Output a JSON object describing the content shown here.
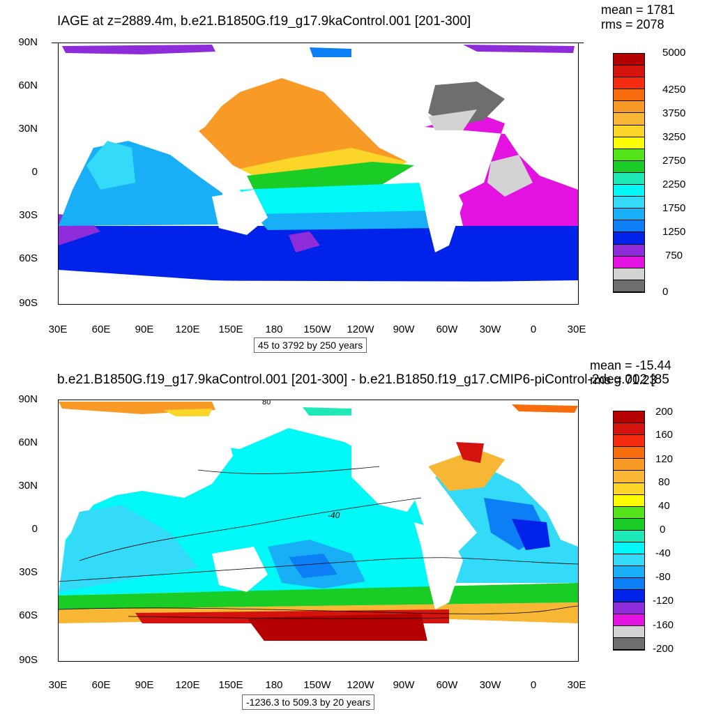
{
  "panels": [
    {
      "title": "IAGE at z=2889.4m, b.e21.B1850G.f19_g17.9kaControl.001 [201-300]",
      "mean_label": "mean = 1781",
      "rms_label": "rms = 2078",
      "range_label": "45 to 3792 by 250 years",
      "colorbar": {
        "colors": [
          "#b40000",
          "#d4120e",
          "#f52c10",
          "#f76c0c",
          "#f99a27",
          "#f8b635",
          "#fbd528",
          "#fdfb00",
          "#52e318",
          "#19cc26",
          "#1ee9b7",
          "#00f9f7",
          "#33dbf9",
          "#18aff6",
          "#0d7ff6",
          "#0022e9",
          "#8f2cd9",
          "#e312e0",
          "#d3d3d3",
          "#6e6e6e"
        ],
        "labels": [
          "5000",
          "4250",
          "3750",
          "3250",
          "2750",
          "2250",
          "1750",
          "1250",
          "750",
          "0"
        ]
      }
    },
    {
      "title": "b.e21.B1850G.f19_g17.9kaControl.001 [201-300] - b.e21.B1850.f19_g17.CMIP6-piControl-2deg.002 [85",
      "mean_label": "mean = -15.44",
      "rms_label": "rms = 71.23",
      "range_label": "-1236.3 to 509.3 by 20 years",
      "contour_labels": [
        "-40",
        "80"
      ],
      "colorbar": {
        "colors": [
          "#b40000",
          "#d4120e",
          "#f52c10",
          "#f76c0c",
          "#f99a27",
          "#f8b635",
          "#fbd528",
          "#fdfb00",
          "#52e318",
          "#19cc26",
          "#1ee9b7",
          "#00f9f7",
          "#33dbf9",
          "#18aff6",
          "#0d7ff6",
          "#0022e9",
          "#8f2cd9",
          "#e312e0",
          "#d3d3d3",
          "#6e6e6e"
        ],
        "labels": [
          "200",
          "160",
          "120",
          "80",
          "40",
          "0",
          "-40",
          "-80",
          "-120",
          "-160",
          "-200"
        ]
      }
    }
  ],
  "axes": {
    "lat_labels": [
      "90N",
      "60N",
      "30N",
      "0",
      "30S",
      "60S",
      "90S"
    ],
    "lon_labels": [
      "30E",
      "60E",
      "90E",
      "120E",
      "150E",
      "180",
      "150W",
      "120W",
      "90W",
      "60W",
      "30W",
      "0",
      "30E"
    ]
  }
}
